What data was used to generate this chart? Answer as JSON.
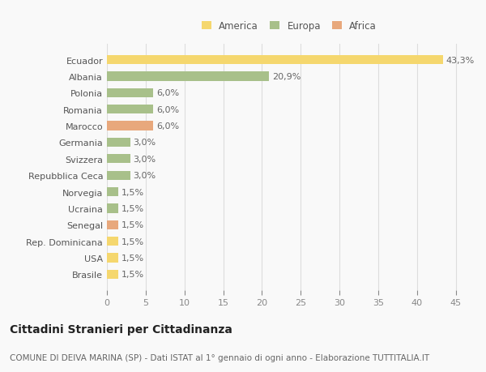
{
  "categories": [
    "Brasile",
    "USA",
    "Rep. Dominicana",
    "Senegal",
    "Ucraina",
    "Norvegia",
    "Repubblica Ceca",
    "Svizzera",
    "Germania",
    "Marocco",
    "Romania",
    "Polonia",
    "Albania",
    "Ecuador"
  ],
  "values": [
    1.5,
    1.5,
    1.5,
    1.5,
    1.5,
    1.5,
    3.0,
    3.0,
    3.0,
    6.0,
    6.0,
    6.0,
    20.9,
    43.3
  ],
  "colors": [
    "#f5d76e",
    "#f5d76e",
    "#f5d76e",
    "#e8a87c",
    "#a8c08a",
    "#a8c08a",
    "#a8c08a",
    "#a8c08a",
    "#a8c08a",
    "#e8a87c",
    "#a8c08a",
    "#a8c08a",
    "#a8c08a",
    "#f5d76e"
  ],
  "labels": [
    "1,5%",
    "1,5%",
    "1,5%",
    "1,5%",
    "1,5%",
    "1,5%",
    "3,0%",
    "3,0%",
    "3,0%",
    "6,0%",
    "6,0%",
    "6,0%",
    "20,9%",
    "43,3%"
  ],
  "legend": [
    {
      "label": "America",
      "color": "#f5d76e"
    },
    {
      "label": "Europa",
      "color": "#a8c08a"
    },
    {
      "label": "Africa",
      "color": "#e8a87c"
    }
  ],
  "title": "Cittadini Stranieri per Cittadinanza",
  "subtitle": "COMUNE DI DEIVA MARINA (SP) - Dati ISTAT al 1° gennaio di ogni anno - Elaborazione TUTTITALIA.IT",
  "xlim": [
    0,
    47
  ],
  "xticks": [
    0,
    5,
    10,
    15,
    20,
    25,
    30,
    35,
    40,
    45
  ],
  "background_color": "#f9f9f9",
  "grid_color": "#dddddd",
  "bar_height": 0.55,
  "title_fontsize": 10,
  "subtitle_fontsize": 7.5,
  "tick_fontsize": 8,
  "label_fontsize": 8,
  "legend_fontsize": 8.5
}
